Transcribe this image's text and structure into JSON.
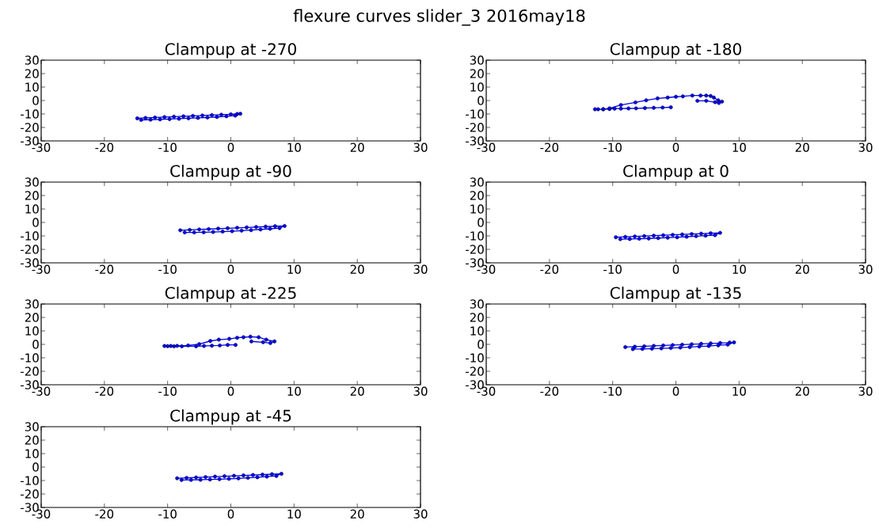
{
  "chart_data": [
    {
      "type": "line",
      "title": "Clampup at -270",
      "annotations": [
        "flexure curves slider_3 2016may18"
      ],
      "marker": "circle",
      "line_style": "solid",
      "grid": false,
      "xlim": [
        -30,
        30
      ],
      "ylim": [
        -30,
        30
      ],
      "xticks": [
        -30,
        -20,
        -10,
        0,
        10,
        20,
        30
      ],
      "yticks": [
        -30,
        -20,
        -10,
        0,
        10,
        20,
        30
      ],
      "series": [
        {
          "color": "#0000ff",
          "x": [
            -14.8,
            -13.5,
            -12,
            -10.5,
            -9,
            -7.5,
            -6,
            -4.5,
            -3,
            -1.5,
            0,
            1,
            1.5,
            0.7,
            -0.7,
            -2.2,
            -3.7,
            -5.2,
            -6.7,
            -8.2,
            -9.7,
            -11.2,
            -12.7,
            -14.2
          ],
          "values": [
            -13.2,
            -12.9,
            -12.6,
            -12.3,
            -12,
            -11.7,
            -11.4,
            -11.1,
            -10.8,
            -10.5,
            -10.2,
            -10,
            -9.8,
            -11.2,
            -11.7,
            -12.2,
            -12.6,
            -12.9,
            -13.2,
            -13.5,
            -13.8,
            -14,
            -14.2,
            -14.4
          ]
        }
      ]
    },
    {
      "type": "line",
      "title": "Clampup at -180",
      "marker": "circle",
      "line_style": "solid",
      "grid": false,
      "xlim": [
        -30,
        30
      ],
      "ylim": [
        -30,
        30
      ],
      "xticks": [
        -30,
        -20,
        -10,
        0,
        10,
        20,
        30
      ],
      "yticks": [
        -30,
        -20,
        -10,
        0,
        10,
        20,
        30
      ],
      "series": [
        {
          "color": "#0000ff",
          "x": [
            -0.8,
            -2.1,
            -3.5,
            -4.9,
            -6.3,
            -7.5,
            -8.7,
            -9.7,
            -10.5,
            -11.5,
            -12.3,
            -12.8,
            -11.5,
            -10.5,
            -8.7,
            -6.4,
            -4.7,
            -2.9,
            -1.3,
            0,
            1.1,
            2.6,
            3.9,
            4.8,
            5.5,
            6,
            6.7,
            7.3,
            6.8,
            6.2,
            4.8,
            3.4
          ],
          "values": [
            -5,
            -5.2,
            -5.4,
            -5.6,
            -5.8,
            -5.9,
            -6,
            -6,
            -6.3,
            -6.5,
            -6.5,
            -6.5,
            -6.4,
            -5.8,
            -3.3,
            -1.4,
            0.2,
            1.6,
            2.2,
            2.8,
            3.1,
            3.7,
            3.7,
            3.7,
            3.4,
            2.2,
            0.2,
            -0.8,
            -1.8,
            -1.2,
            -0.2,
            -0.2
          ]
        }
      ]
    },
    {
      "type": "line",
      "title": "Clampup at -90",
      "marker": "circle",
      "line_style": "solid",
      "grid": false,
      "xlim": [
        -30,
        30
      ],
      "ylim": [
        -30,
        30
      ],
      "xticks": [
        -30,
        -20,
        -10,
        0,
        10,
        20,
        30
      ],
      "yticks": [
        -30,
        -20,
        -10,
        0,
        10,
        20,
        30
      ],
      "series": [
        {
          "color": "#0000ff",
          "x": [
            -8,
            -6.5,
            -5,
            -3.5,
            -2,
            -0.5,
            1,
            2.5,
            4,
            5.5,
            7,
            8.5,
            7.7,
            6.2,
            4.7,
            3.2,
            1.7,
            0.2,
            -1.3,
            -2.8,
            -4.3,
            -5.8,
            -7.3
          ],
          "values": [
            -5.8,
            -5.5,
            -5.2,
            -4.9,
            -4.6,
            -4.3,
            -4,
            -3.7,
            -3.4,
            -3.1,
            -2.8,
            -2.6,
            -4.2,
            -4.7,
            -5.2,
            -5.7,
            -6.1,
            -6.5,
            -6.8,
            -7.1,
            -7.3,
            -7.4,
            -7.4
          ]
        }
      ]
    },
    {
      "type": "line",
      "title": "Clampup at 0",
      "marker": "circle",
      "line_style": "solid",
      "grid": false,
      "xlim": [
        -30,
        30
      ],
      "ylim": [
        -30,
        30
      ],
      "xticks": [
        -30,
        -20,
        -10,
        0,
        10,
        20,
        30
      ],
      "yticks": [
        -30,
        -20,
        -10,
        0,
        10,
        20,
        30
      ],
      "series": [
        {
          "color": "#0000ff",
          "x": [
            -9.5,
            -8,
            -6.5,
            -5,
            -3.5,
            -2,
            -0.5,
            1,
            2.5,
            4,
            5.5,
            7,
            6.2,
            4.7,
            3.2,
            1.7,
            0.2,
            -1.3,
            -2.8,
            -4.3,
            -5.8,
            -7.3,
            -8.8
          ],
          "values": [
            -11,
            -10.7,
            -10.4,
            -10.1,
            -9.8,
            -9.5,
            -9.2,
            -8.9,
            -8.6,
            -8.3,
            -8,
            -7.7,
            -9.4,
            -9.8,
            -10.2,
            -10.6,
            -11,
            -11.3,
            -11.6,
            -11.9,
            -12.1,
            -12.3,
            -12.4
          ]
        }
      ]
    },
    {
      "type": "line",
      "title": "Clampup at -225",
      "marker": "circle",
      "line_style": "solid",
      "grid": false,
      "xlim": [
        -30,
        30
      ],
      "ylim": [
        -30,
        30
      ],
      "xticks": [
        -30,
        -20,
        -10,
        0,
        10,
        20,
        30
      ],
      "yticks": [
        -30,
        -20,
        -10,
        0,
        10,
        20,
        30
      ],
      "series": [
        {
          "color": "#0000ff",
          "x": [
            0.75,
            -0.5,
            -1.75,
            -3,
            -4.25,
            -5.5,
            -7.75,
            -9,
            -10,
            -10.5,
            -9.5,
            -8.5,
            -6.75,
            -5,
            -3.25,
            -1.9,
            -0.25,
            1,
            2,
            3.1,
            4.4,
            5.6,
            6.9,
            6.25,
            5.1,
            3.25
          ],
          "values": [
            -0.4,
            -0.4,
            -0.8,
            -1,
            -1.2,
            -1.4,
            -1.4,
            -1.4,
            -1.3,
            -1.2,
            -1.2,
            -1.1,
            -0.8,
            0.2,
            2.5,
            3.5,
            4.1,
            4.9,
            5.3,
            5.7,
            5.3,
            3.5,
            2.2,
            1,
            1.6,
            2.2
          ]
        }
      ]
    },
    {
      "type": "line",
      "title": "Clampup at -135",
      "marker": "circle",
      "line_style": "solid",
      "grid": false,
      "xlim": [
        -30,
        30
      ],
      "ylim": [
        -30,
        30
      ],
      "xticks": [
        -30,
        -20,
        -10,
        0,
        10,
        20,
        30
      ],
      "yticks": [
        -30,
        -20,
        -10,
        0,
        10,
        20,
        30
      ],
      "series": [
        {
          "color": "#0000ff",
          "x": [
            -8,
            -6.5,
            -5,
            -3.5,
            -2,
            -0.5,
            1,
            2.5,
            4,
            5.5,
            7,
            8.5,
            9.2,
            8.2,
            6.7,
            5.2,
            3.7,
            2.2,
            0.7,
            -0.8,
            -2.3,
            -3.8,
            -5.3,
            -6.8
          ],
          "values": [
            -2,
            -1.7,
            -1.4,
            -1.1,
            -0.8,
            -0.5,
            -0.2,
            0.1,
            0.4,
            0.7,
            1,
            1.3,
            1.5,
            -0.2,
            -0.7,
            -1.2,
            -1.6,
            -2,
            -2.4,
            -2.7,
            -3,
            -3.2,
            -3.4,
            -3.5
          ]
        }
      ]
    },
    {
      "type": "line",
      "title": "Clampup at -45",
      "marker": "circle",
      "line_style": "solid",
      "grid": false,
      "xlim": [
        -30,
        30
      ],
      "ylim": [
        -30,
        30
      ],
      "xticks": [
        -30,
        -20,
        -10,
        0,
        10,
        20,
        30
      ],
      "yticks": [
        -30,
        -20,
        -10,
        0,
        10,
        20,
        30
      ],
      "series": [
        {
          "color": "#0000ff",
          "x": [
            -8.5,
            -7,
            -5.5,
            -4,
            -2.5,
            -1,
            0.5,
            2,
            3.5,
            5,
            6.5,
            8,
            7.2,
            5.7,
            4.2,
            2.7,
            1.2,
            -0.3,
            -1.8,
            -3.3,
            -4.8,
            -6.3,
            -7.8
          ],
          "values": [
            -8.3,
            -8,
            -7.7,
            -7.4,
            -7.1,
            -6.8,
            -6.5,
            -6.2,
            -5.9,
            -5.6,
            -5.3,
            -5,
            -6.6,
            -7.1,
            -7.6,
            -8,
            -8.4,
            -8.7,
            -9,
            -9.2,
            -9.4,
            -9.5,
            -9.6
          ]
        }
      ]
    }
  ]
}
